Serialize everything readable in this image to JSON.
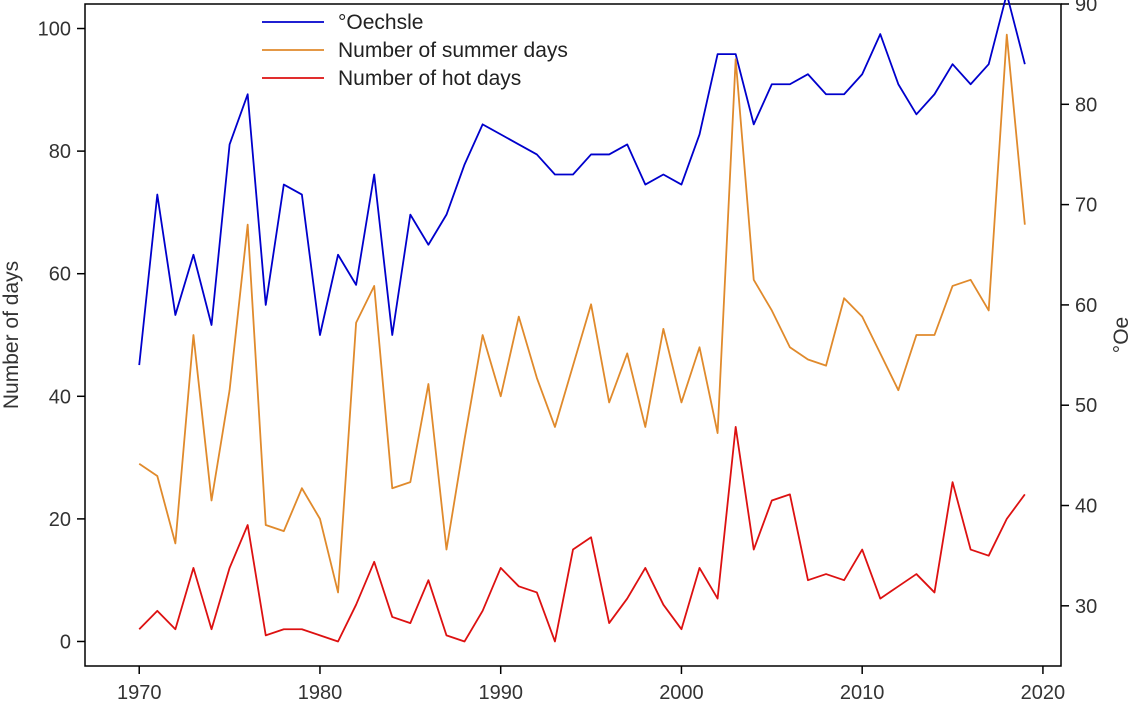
{
  "chart_data": {
    "type": "line",
    "title": "",
    "xlabel": "",
    "ylabel_left": "Number of days",
    "ylabel_right": "°Oe",
    "xlim": [
      1967,
      2021
    ],
    "ylim_left": [
      -4,
      104
    ],
    "ylim_right": [
      24,
      90
    ],
    "x_ticks": [
      1970,
      1980,
      1990,
      2000,
      2010,
      2020
    ],
    "y_ticks_left": [
      0,
      20,
      40,
      60,
      80,
      100
    ],
    "y_ticks_right": [
      30,
      40,
      50,
      60,
      70,
      80,
      90
    ],
    "grid": false,
    "legend_position": "top-center",
    "x": [
      1970,
      1971,
      1972,
      1973,
      1974,
      1975,
      1976,
      1977,
      1978,
      1979,
      1980,
      1981,
      1982,
      1983,
      1984,
      1985,
      1986,
      1987,
      1988,
      1989,
      1990,
      1991,
      1992,
      1993,
      1994,
      1995,
      1996,
      1997,
      1998,
      1999,
      2000,
      2001,
      2002,
      2003,
      2004,
      2005,
      2006,
      2007,
      2008,
      2009,
      2010,
      2011,
      2012,
      2013,
      2014,
      2015,
      2016,
      2017,
      2018,
      2019
    ],
    "series": [
      {
        "name": "°Oechsle",
        "axis": "right",
        "color": "#0000cc",
        "values": [
          54,
          71,
          59,
          65,
          58,
          76,
          81,
          60,
          72,
          71,
          57,
          65,
          62,
          73,
          57,
          69,
          66,
          69,
          74,
          78,
          77,
          76,
          75,
          73,
          73,
          75,
          75,
          76,
          72,
          73,
          72,
          77,
          85,
          85,
          78,
          82,
          82,
          83,
          81,
          81,
          83,
          87,
          82,
          79,
          81,
          84,
          82,
          84,
          91,
          84
        ]
      },
      {
        "name": "Number of summer days",
        "axis": "left",
        "color": "#e08a2c",
        "values": [
          29,
          27,
          16,
          50,
          23,
          41,
          68,
          19,
          18,
          25,
          20,
          8,
          52,
          58,
          25,
          26,
          42,
          15,
          33,
          50,
          40,
          53,
          43,
          35,
          45,
          55,
          39,
          47,
          35,
          51,
          39,
          48,
          34,
          95,
          59,
          54,
          48,
          46,
          45,
          56,
          53,
          47,
          41,
          50,
          50,
          58,
          59,
          54,
          99,
          68
        ]
      },
      {
        "name": "Number of hot days",
        "axis": "left",
        "color": "#dd1111",
        "values": [
          2,
          5,
          2,
          12,
          2,
          12,
          19,
          1,
          2,
          2,
          1,
          0,
          6,
          13,
          4,
          3,
          10,
          1,
          0,
          5,
          12,
          9,
          8,
          0,
          15,
          17,
          3,
          7,
          12,
          6,
          2,
          12,
          7,
          35,
          15,
          23,
          24,
          10,
          11,
          10,
          15,
          7,
          9,
          11,
          8,
          26,
          15,
          14,
          20,
          24
        ]
      }
    ]
  }
}
